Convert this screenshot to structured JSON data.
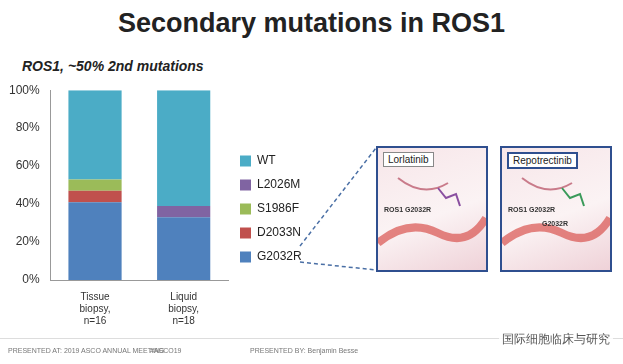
{
  "chart_data": {
    "type": "bar",
    "title": "Secondary mutations in ROS1",
    "subtitle": "ROS1, ~50% 2nd mutations",
    "categories": [
      "Tissue biopsy, n=16",
      "Liquid biopsy, n=18"
    ],
    "series": [
      {
        "name": "G2032R",
        "color": "#4f81bd",
        "values": [
          41,
          33
        ]
      },
      {
        "name": "D2033N",
        "color": "#c0504d",
        "values": [
          6,
          0
        ]
      },
      {
        "name": "S1986F",
        "color": "#9bbb59",
        "values": [
          6,
          0
        ]
      },
      {
        "name": "L2026M",
        "color": "#8064a2",
        "values": [
          0,
          6
        ]
      },
      {
        "name": "WT",
        "color": "#4bacc6",
        "values": [
          47,
          61
        ]
      }
    ],
    "stacked": true,
    "grid": false,
    "legend": "right",
    "ylim": [
      0,
      100
    ],
    "yticks": [
      {
        "value": 0,
        "label": "0%"
      },
      {
        "value": 20,
        "label": "20%"
      },
      {
        "value": 40,
        "label": "40%"
      },
      {
        "value": 60,
        "label": "60%"
      },
      {
        "value": 80,
        "label": "80%"
      },
      {
        "value": 100,
        "label": "100%"
      }
    ]
  },
  "slide": {
    "panels": [
      {
        "name": "Lorlatinib",
        "labels": [
          "ROS1 G2032R"
        ]
      },
      {
        "name": "Repotrectinib",
        "labels": [
          "ROS1 G2032R",
          "G2032R"
        ]
      }
    ],
    "footer": [
      "PRESENTED AT: 2019 ASCO ANNUAL MEETING",
      "#ASCO19",
      "PRESENTED BY: Benjamin Besse"
    ],
    "watermark": "国际细胞临床与研究"
  }
}
